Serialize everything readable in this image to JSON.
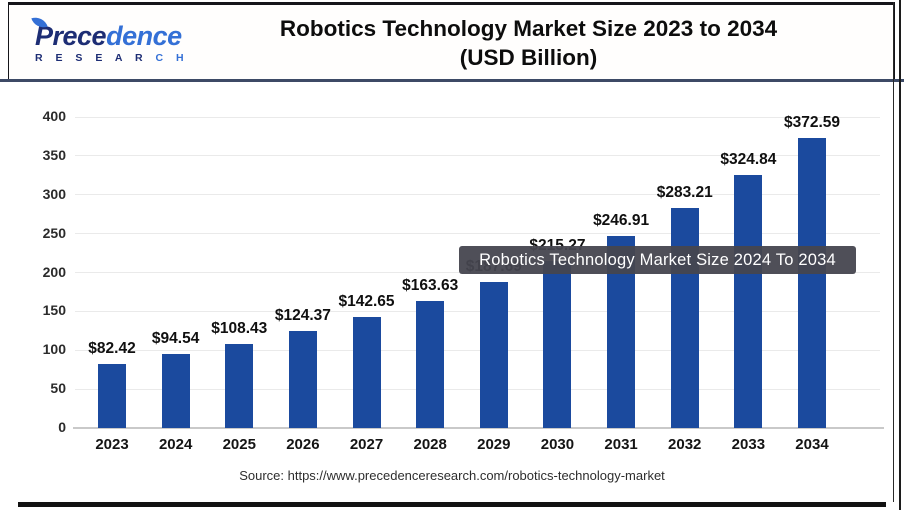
{
  "header": {
    "logo": {
      "name_dark": "Prece",
      "name_light": "dence",
      "sub_dark": "R E S E A R ",
      "sub_light": "C H"
    },
    "title_line1": "Robotics Technology Market Size 2023 to 2034",
    "title_line2": "(USD Billion)"
  },
  "tooltip": {
    "text": "Robotics Technology Market Size 2024 To 2034"
  },
  "source": {
    "text": "Source: https://www.precedenceresearch.com/robotics-technology-market"
  },
  "colors": {
    "bar": "#1b4a9e",
    "tooltip_bg": "rgba(70,70,79,0.95)",
    "separator": "#3d4a66"
  },
  "chart_data": {
    "type": "bar",
    "title": "Robotics Technology Market Size 2023 to 2034 (USD Billion)",
    "xlabel": "",
    "ylabel": "",
    "categories": [
      "2023",
      "2024",
      "2025",
      "2026",
      "2027",
      "2028",
      "2029",
      "2030",
      "2031",
      "2032",
      "2033",
      "2034"
    ],
    "values": [
      82.42,
      94.54,
      108.43,
      124.37,
      142.65,
      163.63,
      187.69,
      215.27,
      246.91,
      283.21,
      324.84,
      372.59
    ],
    "labels": [
      "$82.42",
      "$94.54",
      "$108.43",
      "$124.37",
      "$142.65",
      "$163.63",
      "$187.69",
      "$215.27",
      "$246.91",
      "$283.21",
      "$324.84",
      "$372.59"
    ],
    "ylim": [
      0,
      400
    ],
    "yticks": [
      0,
      50,
      100,
      150,
      200,
      250,
      300,
      350,
      400
    ],
    "grid": true,
    "legend": "none",
    "bar_color": "#1b4a9e"
  }
}
